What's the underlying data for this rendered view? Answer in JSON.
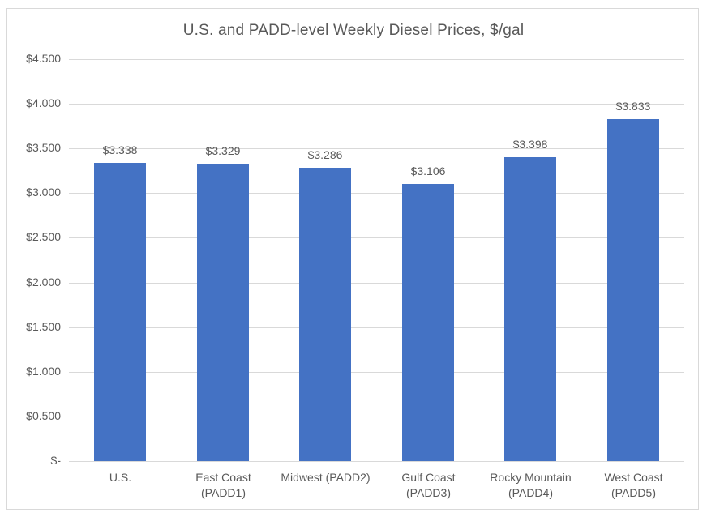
{
  "chart_data": {
    "type": "bar",
    "title": "U.S. and PADD-level Weekly Diesel Prices, $/gal",
    "categories": [
      "U.S.",
      "East Coast (PADD1)",
      "Midwest (PADD2)",
      "Gulf Coast (PADD3)",
      "Rocky Mountain (PADD4)",
      "West Coast (PADD5)"
    ],
    "category_lines": [
      [
        "U.S."
      ],
      [
        "East Coast",
        "(PADD1)"
      ],
      [
        "Midwest (PADD2)"
      ],
      [
        "Gulf Coast",
        "(PADD3)"
      ],
      [
        "Rocky Mountain",
        "(PADD4)"
      ],
      [
        "West Coast",
        "(PADD5)"
      ]
    ],
    "values": [
      3.338,
      3.329,
      3.286,
      3.106,
      3.398,
      3.833
    ],
    "data_labels": [
      "$3.338",
      "$3.329",
      "$3.286",
      "$3.106",
      "$3.398",
      "$3.833"
    ],
    "xlabel": "",
    "ylabel": "",
    "ylim": [
      0,
      4.5
    ],
    "ytick_step": 0.5,
    "ytick_labels": [
      "$-",
      "$0.500",
      "$1.000",
      "$1.500",
      "$2.000",
      "$2.500",
      "$3.000",
      "$3.500",
      "$4.000",
      "$4.500"
    ],
    "grid": true,
    "legend": "none",
    "bar_color": "#4472C4",
    "text_color": "#595959",
    "gridline_color": "#D9D9D9",
    "frame_color": "#D9D9D9"
  }
}
